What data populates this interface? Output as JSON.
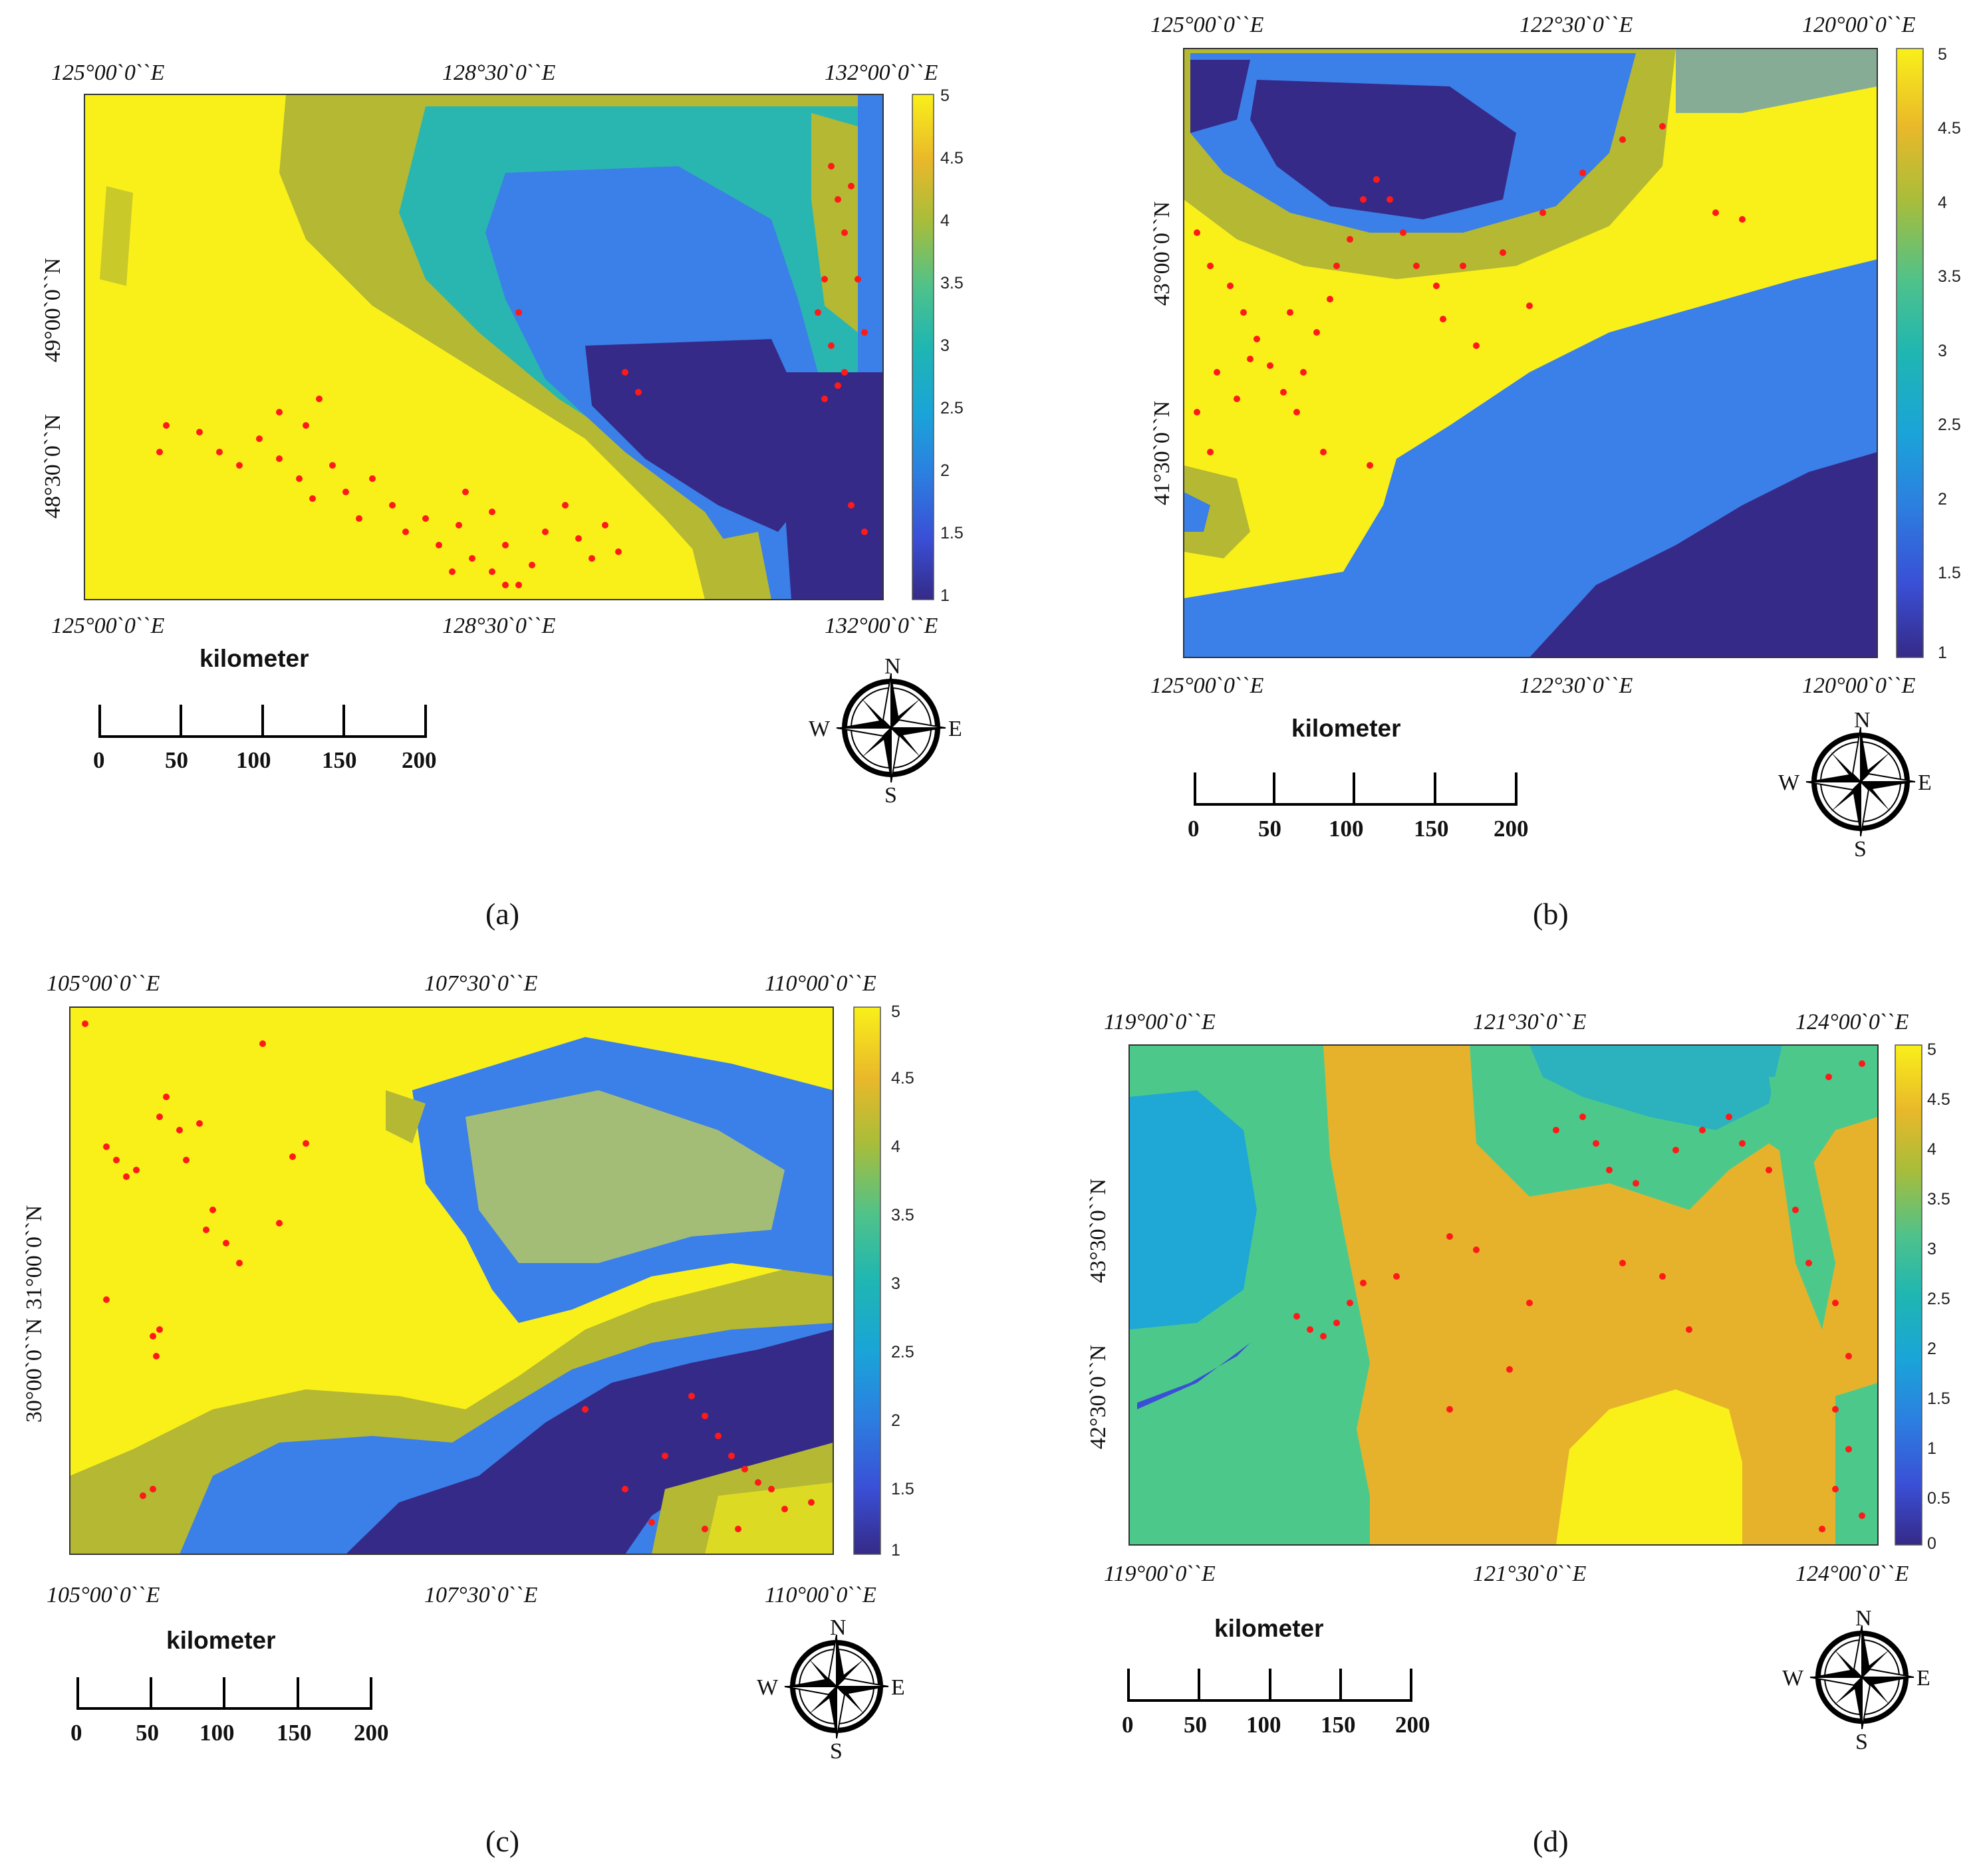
{
  "figure": {
    "panels": [
      {
        "id": "a",
        "label": "(a)",
        "top_lon_labels": [
          "125°00ˋ0ˋˋE",
          "128°30ˋ0ˋˋE",
          "132°00ˋ0ˋˋE"
        ],
        "bottom_lon_labels": [
          "125°00ˋ0ˋˋE",
          "128°30ˋ0ˋˋE",
          "132°00ˋ0ˋˋE"
        ],
        "lat_labels": [
          "49°00ˋ0ˋˋN",
          "48°30ˋ0ˋˋN"
        ],
        "colorbar": {
          "min": 1,
          "max": 5,
          "ticks": [
            "5",
            "4.5",
            "4",
            "3.5",
            "3",
            "2.5",
            "2",
            "1.5",
            "1"
          ]
        },
        "scalebar": {
          "title": "kilometer",
          "ticks": [
            "0",
            "50",
            "100",
            "150",
            "200"
          ]
        },
        "compass": {
          "n": "N",
          "s": "S",
          "e": "E",
          "w": "W"
        }
      },
      {
        "id": "b",
        "label": "(b)",
        "top_lon_labels": [
          "125°00ˋ0ˋˋE",
          "122°30ˋ0ˋˋE",
          "120°00ˋ0ˋˋE"
        ],
        "bottom_lon_labels": [
          "125°00ˋ0ˋˋE",
          "122°30ˋ0ˋˋE",
          "120°00ˋ0ˋˋE"
        ],
        "lat_labels": [
          "43°00ˋ0ˋˋN",
          "41°30ˋ0ˋˋN"
        ],
        "colorbar": {
          "min": 1,
          "max": 5,
          "ticks": [
            "5",
            "4.5",
            "4",
            "3.5",
            "3",
            "2.5",
            "2",
            "1.5",
            "1"
          ]
        },
        "scalebar": {
          "title": "kilometer",
          "ticks": [
            "0",
            "50",
            "100",
            "150",
            "200"
          ]
        },
        "compass": {
          "n": "N",
          "s": "S",
          "e": "E",
          "w": "W"
        }
      },
      {
        "id": "c",
        "label": "(c)",
        "top_lon_labels": [
          "105°00ˋ0ˋˋE",
          "107°30ˋ0ˋˋE",
          "110°00ˋ0ˋˋE"
        ],
        "bottom_lon_labels": [
          "105°00ˋ0ˋˋE",
          "107°30ˋ0ˋˋE",
          "110°00ˋ0ˋˋE"
        ],
        "lat_labels": [
          "31°00ˋ0ˋˋN",
          "30°00ˋ0ˋˋN"
        ],
        "colorbar": {
          "min": 1,
          "max": 5,
          "ticks": [
            "5",
            "4.5",
            "4",
            "3.5",
            "3",
            "2.5",
            "2",
            "1.5",
            "1"
          ]
        },
        "scalebar": {
          "title": "kilometer",
          "ticks": [
            "0",
            "50",
            "100",
            "150",
            "200"
          ]
        },
        "compass": {
          "n": "N",
          "s": "S",
          "e": "E",
          "w": "W"
        }
      },
      {
        "id": "d",
        "label": "(d)",
        "top_lon_labels": [
          "119°00ˋ0ˋˋE",
          "121°30ˋ0ˋˋE",
          "124°00ˋ0ˋˋE"
        ],
        "bottom_lon_labels": [
          "119°00ˋ0ˋˋE",
          "121°30ˋ0ˋˋE",
          "124°00ˋ0ˋˋE"
        ],
        "lat_labels": [
          "43°30ˋ0ˋˋN",
          "42°30ˋ0ˋˋN"
        ],
        "colorbar": {
          "min": 0,
          "max": 5,
          "ticks": [
            "5",
            "4.5",
            "4",
            "3.5",
            "3",
            "2.5",
            "2",
            "1.5",
            "1",
            "0.5",
            "0"
          ]
        },
        "scalebar": {
          "title": "kilometer",
          "ticks": [
            "0",
            "50",
            "100",
            "150",
            "200"
          ]
        },
        "compass": {
          "n": "N",
          "s": "S",
          "e": "E",
          "w": "W"
        }
      }
    ]
  },
  "colors": {
    "v1": "#352a87",
    "v1_5": "#3a4fd6",
    "v2": "#3b7fe8",
    "v2_5": "#1fa8d6",
    "v3": "#2ab6b0",
    "v3_5": "#4fc98a",
    "v4": "#b5b832",
    "v4_5": "#e8b92a",
    "v5": "#f9f01a",
    "v_orange": "#e6b22c",
    "v_green": "#4cc98a",
    "point": "#ff1a1a"
  }
}
